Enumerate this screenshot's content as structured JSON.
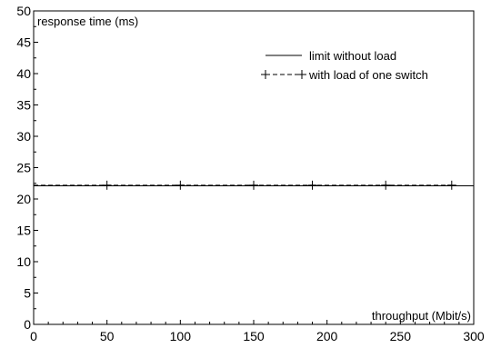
{
  "chart_data": {
    "type": "line",
    "title": "",
    "xlabel": "throughput (Mbit/s)",
    "ylabel": "response time (ms)",
    "xlim": [
      0,
      300
    ],
    "ylim": [
      0,
      50
    ],
    "x_ticks": [
      "0",
      "50",
      "100",
      "150",
      "200",
      "250",
      "300"
    ],
    "y_ticks": [
      "0",
      "5",
      "10",
      "15",
      "20",
      "25",
      "30",
      "35",
      "40",
      "45",
      "50"
    ],
    "grid": false,
    "legend_position": "top-right",
    "series": [
      {
        "name": "limit without load",
        "style": "solid",
        "marker": "none",
        "x": [
          0,
          300
        ],
        "y": [
          22.1,
          22.1
        ]
      },
      {
        "name": "with load of one switch",
        "style": "dashed",
        "marker": "plus",
        "x": [
          0,
          50,
          100,
          150,
          190,
          240,
          285
        ],
        "y": [
          22.2,
          22.2,
          22.2,
          22.2,
          22.2,
          22.2,
          22.2
        ]
      }
    ]
  }
}
